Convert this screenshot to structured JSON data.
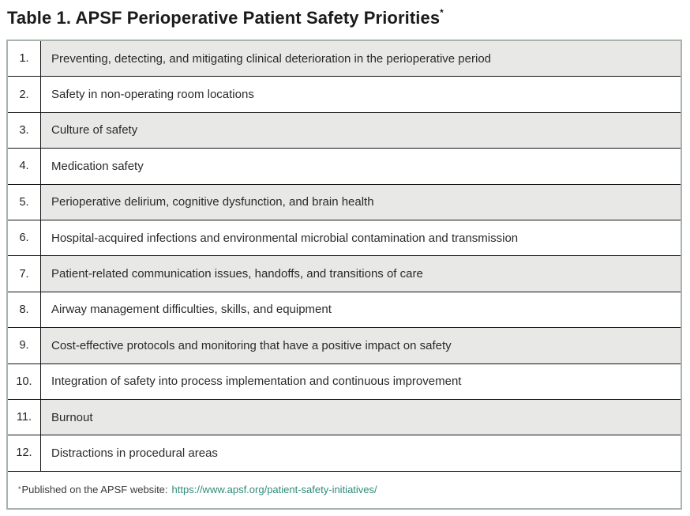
{
  "title": {
    "text": "Table 1. APSF Perioperative Patient Safety Priorities",
    "asterisk": "*"
  },
  "table": {
    "rows": [
      {
        "num": "1.",
        "text": "Preventing, detecting, and mitigating clinical deterioration in the perioperative period"
      },
      {
        "num": "2.",
        "text": "Safety in non-operating room locations"
      },
      {
        "num": "3.",
        "text": "Culture of safety"
      },
      {
        "num": "4.",
        "text": "Medication safety"
      },
      {
        "num": "5.",
        "text": "Perioperative delirium, cognitive dysfunction, and brain health"
      },
      {
        "num": "6.",
        "text": "Hospital-acquired infections and environmental microbial contamination and transmission"
      },
      {
        "num": "7.",
        "text": "Patient-related communication issues, handoffs, and transitions of care"
      },
      {
        "num": "8.",
        "text": "Airway management difficulties, skills, and equipment"
      },
      {
        "num": "9.",
        "text": "Cost-effective protocols and monitoring that have a positive impact on safety"
      },
      {
        "num": "10.",
        "text": "Integration of safety into process implementation and continuous improvement"
      },
      {
        "num": "11.",
        "text": "Burnout"
      },
      {
        "num": "12.",
        "text": "Distractions in procedural areas"
      }
    ]
  },
  "footnote": {
    "asterisk": "*",
    "text": "Published on the APSF website:",
    "link": "https://www.apsf.org/patient-safety-initiatives/"
  },
  "colors": {
    "border_outer": "#a7b3ab",
    "border_inner": "#141414",
    "stripe": "#e8e8e6",
    "accent_link": "#2e8b79",
    "text": "#2a2a2a"
  }
}
